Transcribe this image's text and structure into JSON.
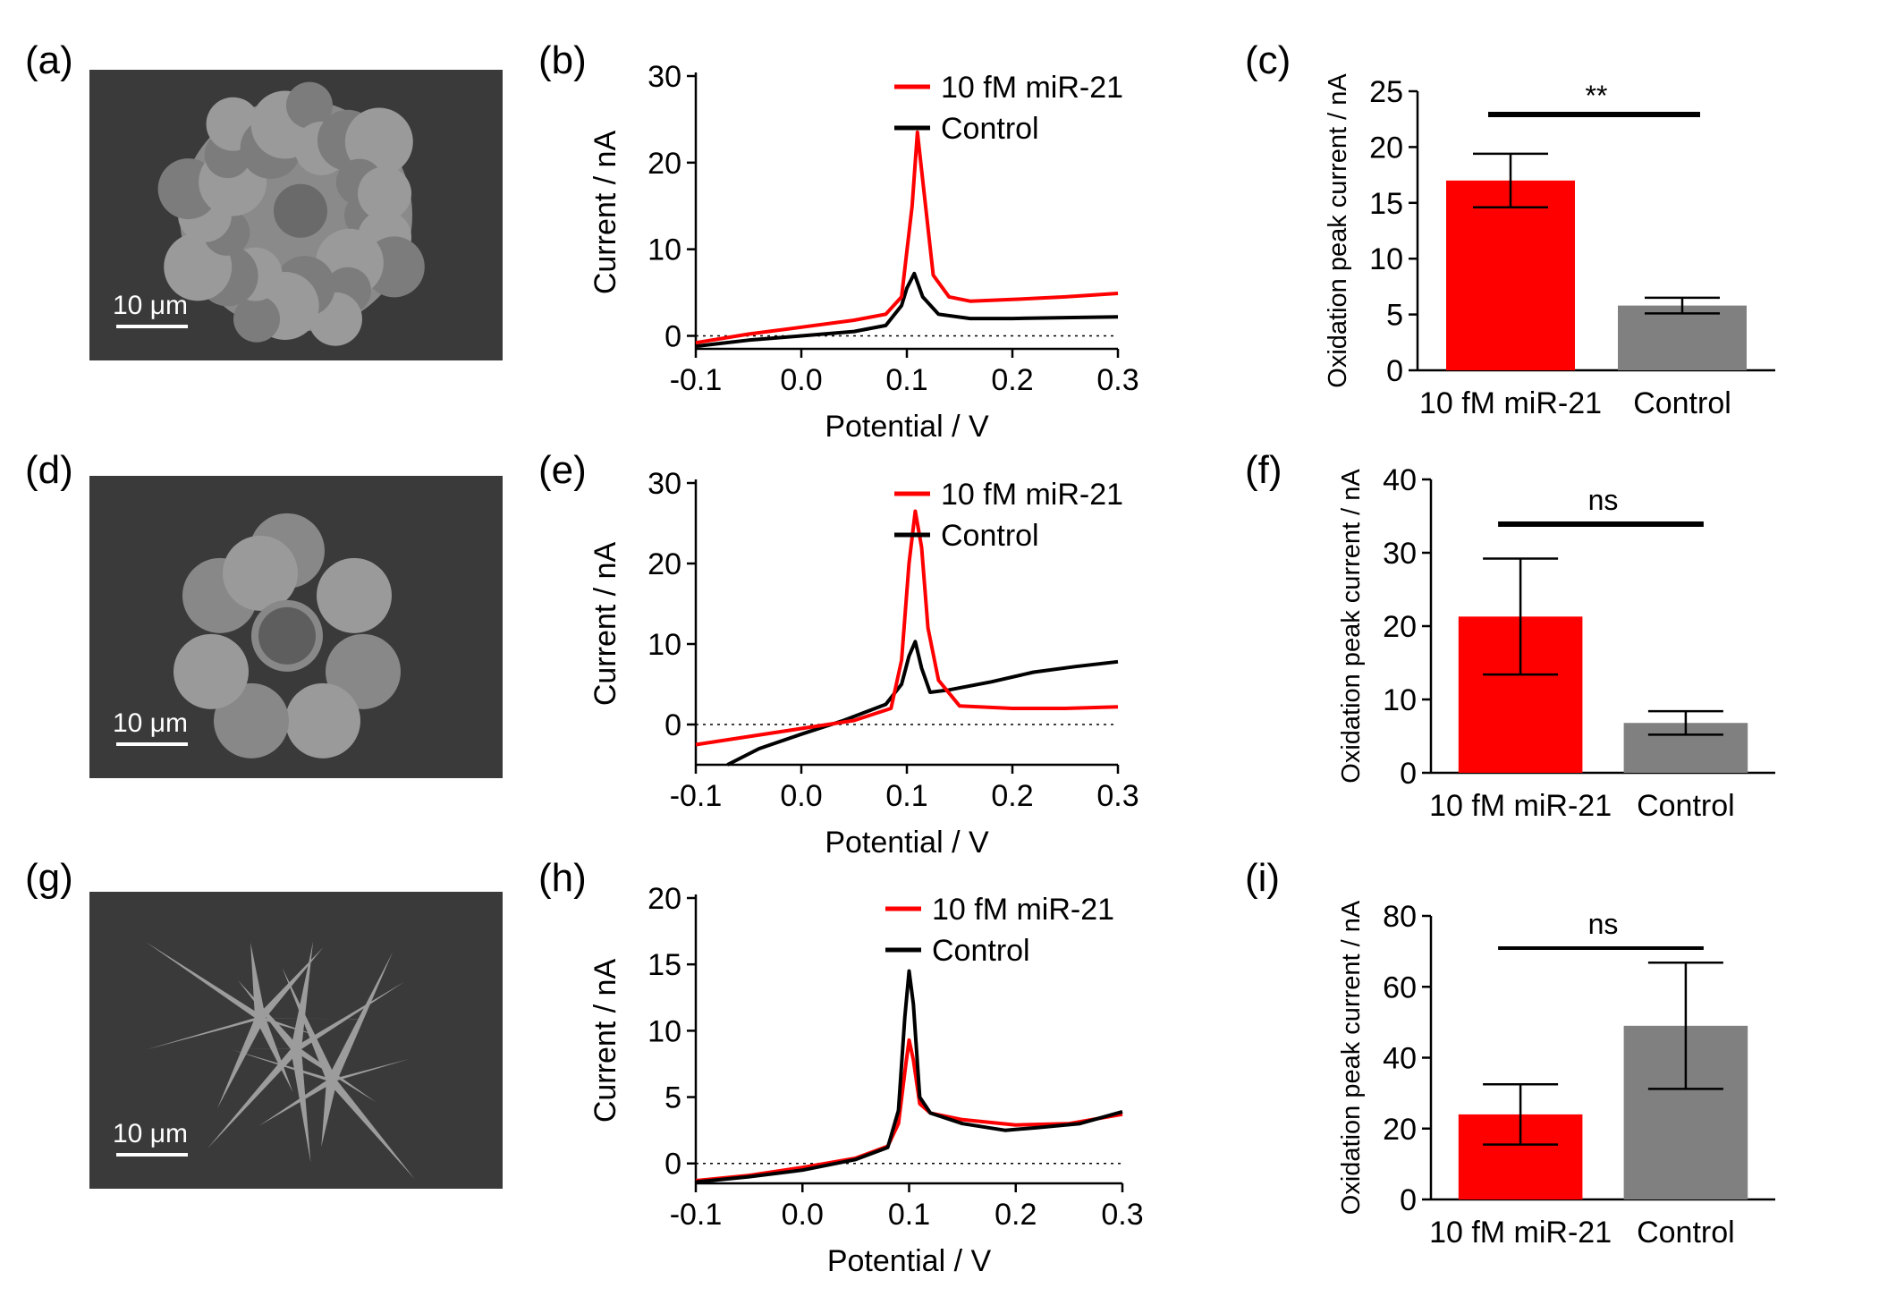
{
  "colors": {
    "red": "#ff0000",
    "black": "#000000",
    "gray": "#808080",
    "sem_bg": "#3a3a3a",
    "particle": "#8a8a8a"
  },
  "rows": [
    {
      "sem": {
        "label": "(a)",
        "scalebar": "10 μm",
        "morphology": "rounded cauliflower-like particle"
      },
      "cv": {
        "label": "(b)",
        "xlabel": "Potential / V",
        "ylabel": "Current / nA",
        "xlim": [
          -0.1,
          0.3
        ],
        "ylim": [
          -1.5,
          30
        ],
        "xticks": [
          -0.1,
          0.0,
          0.1,
          0.2,
          0.3
        ],
        "xtick_labels": [
          "-0.1",
          "0.0",
          "0.1",
          "0.2",
          "0.3"
        ],
        "yticks": [
          0,
          10,
          20,
          30
        ],
        "ytick_labels": [
          "0",
          "10",
          "20",
          "30"
        ],
        "legend": [
          "10 fM miR-21",
          "Control"
        ]
      },
      "bar": {
        "label": "(c)",
        "ylabel": "Oxidation peak current / nA",
        "ylim": [
          0,
          25
        ],
        "yticks": [
          0,
          5,
          10,
          15,
          20,
          25
        ],
        "ytick_labels": [
          "0",
          "5",
          "10",
          "15",
          "20",
          "25"
        ],
        "categories": [
          "10 fM miR-21",
          "Control"
        ],
        "significance": "**"
      }
    },
    {
      "sem": {
        "label": "(d)",
        "scalebar": "10 μm",
        "morphology": "flower-like clustered particles"
      },
      "cv": {
        "label": "(e)",
        "xlabel": "Potential / V",
        "ylabel": "Current / nA",
        "xlim": [
          -0.1,
          0.3
        ],
        "ylim": [
          -5,
          30
        ],
        "xticks": [
          -0.1,
          0.0,
          0.1,
          0.2,
          0.3
        ],
        "xtick_labels": [
          "-0.1",
          "0.0",
          "0.1",
          "0.2",
          "0.3"
        ],
        "yticks": [
          0,
          10,
          20,
          30
        ],
        "ytick_labels": [
          "0",
          "10",
          "20",
          "30"
        ],
        "legend": [
          "10 fM miR-21",
          "Control"
        ]
      },
      "bar": {
        "label": "(f)",
        "ylabel": "Oxidation peak current / nA",
        "ylim": [
          0,
          40
        ],
        "yticks": [
          0,
          10,
          20,
          30,
          40
        ],
        "ytick_labels": [
          "0",
          "10",
          "20",
          "30",
          "40"
        ],
        "categories": [
          "10 fM miR-21",
          "Control"
        ],
        "significance": "ns"
      }
    },
    {
      "sem": {
        "label": "(g)",
        "scalebar": "10 μm",
        "morphology": "spiky needle-like clusters"
      },
      "cv": {
        "label": "(h)",
        "xlabel": "Potential / V",
        "ylabel": "Current / nA",
        "xlim": [
          -0.1,
          0.3
        ],
        "ylim": [
          -1.5,
          20
        ],
        "xticks": [
          -0.1,
          0.0,
          0.1,
          0.2,
          0.3
        ],
        "xtick_labels": [
          "-0.1",
          "0.0",
          "0.1",
          "0.2",
          "0.3"
        ],
        "yticks": [
          0,
          5,
          10,
          15,
          20
        ],
        "ytick_labels": [
          "0",
          "5",
          "10",
          "15",
          "20"
        ],
        "legend": [
          "10 fM miR-21",
          "Control"
        ]
      },
      "bar": {
        "label": "(i)",
        "ylabel": "Oxidation peak current / nA",
        "ylim": [
          0,
          80
        ],
        "yticks": [
          0,
          20,
          40,
          60,
          80
        ],
        "ytick_labels": [
          "0",
          "20",
          "40",
          "60",
          "80"
        ],
        "categories": [
          "10 fM miR-21",
          "Control"
        ],
        "significance": "ns"
      }
    }
  ],
  "chart_data": [
    {
      "type": "line",
      "panel": "(b)",
      "title": "",
      "xlabel": "Potential / V",
      "ylabel": "Current / nA",
      "xlim": [
        -0.1,
        0.3
      ],
      "ylim": [
        -1.5,
        30
      ],
      "series": [
        {
          "name": "10 fM miR-21",
          "color": "#ff0000",
          "x": [
            -0.1,
            -0.05,
            0.0,
            0.05,
            0.08,
            0.095,
            0.105,
            0.11,
            0.115,
            0.125,
            0.14,
            0.16,
            0.2,
            0.25,
            0.3
          ],
          "y": [
            -0.8,
            0.2,
            1.0,
            1.8,
            2.5,
            4.5,
            15.0,
            23.5,
            18.0,
            7.0,
            4.5,
            4.0,
            4.2,
            4.5,
            4.9
          ]
        },
        {
          "name": "Control",
          "color": "#000000",
          "x": [
            -0.1,
            -0.05,
            0.0,
            0.05,
            0.08,
            0.095,
            0.1,
            0.107,
            0.115,
            0.13,
            0.16,
            0.2,
            0.25,
            0.3
          ],
          "y": [
            -1.2,
            -0.5,
            0.0,
            0.5,
            1.2,
            3.5,
            5.5,
            7.2,
            4.5,
            2.5,
            2.0,
            2.0,
            2.1,
            2.2
          ]
        }
      ],
      "reference_line_y": 0
    },
    {
      "type": "bar",
      "panel": "(c)",
      "title": "",
      "xlabel": "",
      "ylabel": "Oxidation peak current / nA",
      "categories": [
        "10 fM miR-21",
        "Control"
      ],
      "values": [
        17.0,
        5.8
      ],
      "errors": [
        2.4,
        0.7
      ],
      "colors": [
        "#ff0000",
        "#808080"
      ],
      "ylim": [
        0,
        25
      ],
      "significance": "**"
    },
    {
      "type": "line",
      "panel": "(e)",
      "title": "",
      "xlabel": "Potential / V",
      "ylabel": "Current / nA",
      "xlim": [
        -0.1,
        0.3
      ],
      "ylim": [
        -5,
        30
      ],
      "series": [
        {
          "name": "10 fM miR-21",
          "color": "#ff0000",
          "x": [
            -0.1,
            -0.05,
            0.0,
            0.05,
            0.085,
            0.095,
            0.102,
            0.108,
            0.114,
            0.12,
            0.13,
            0.15,
            0.2,
            0.25,
            0.3
          ],
          "y": [
            -2.5,
            -1.5,
            -0.5,
            0.5,
            2.0,
            8.0,
            20.0,
            26.5,
            22.0,
            12.0,
            5.5,
            2.3,
            2.0,
            2.0,
            2.2
          ]
        },
        {
          "name": "Control",
          "color": "#000000",
          "x": [
            -0.07,
            -0.04,
            0.0,
            0.04,
            0.08,
            0.095,
            0.102,
            0.108,
            0.114,
            0.122,
            0.14,
            0.18,
            0.22,
            0.26,
            0.3
          ],
          "y": [
            -5.0,
            -3.0,
            -1.2,
            0.5,
            2.5,
            5.0,
            8.5,
            10.3,
            7.0,
            4.0,
            4.3,
            5.3,
            6.5,
            7.2,
            7.8
          ]
        }
      ],
      "reference_line_y": 0
    },
    {
      "type": "bar",
      "panel": "(f)",
      "title": "",
      "xlabel": "",
      "ylabel": "Oxidation peak current / nA",
      "categories": [
        "10 fM miR-21",
        "Control"
      ],
      "values": [
        21.3,
        6.8
      ],
      "errors": [
        7.9,
        1.6
      ],
      "colors": [
        "#ff0000",
        "#808080"
      ],
      "ylim": [
        0,
        40
      ],
      "significance": "ns"
    },
    {
      "type": "line",
      "panel": "(h)",
      "title": "",
      "xlabel": "Potential / V",
      "ylabel": "Current / nA",
      "xlim": [
        -0.1,
        0.3
      ],
      "ylim": [
        -1.5,
        20
      ],
      "series": [
        {
          "name": "10 fM miR-21",
          "color": "#ff0000",
          "x": [
            -0.1,
            -0.05,
            0.0,
            0.05,
            0.08,
            0.09,
            0.097,
            0.1,
            0.104,
            0.11,
            0.12,
            0.15,
            0.2,
            0.25,
            0.3
          ],
          "y": [
            -1.3,
            -0.9,
            -0.3,
            0.4,
            1.3,
            3.0,
            7.5,
            9.3,
            7.8,
            4.5,
            3.8,
            3.3,
            2.9,
            3.0,
            3.7
          ]
        },
        {
          "name": "Control",
          "color": "#000000",
          "x": [
            -0.1,
            -0.05,
            0.0,
            0.05,
            0.08,
            0.09,
            0.096,
            0.1,
            0.104,
            0.11,
            0.12,
            0.15,
            0.19,
            0.22,
            0.26,
            0.3
          ],
          "y": [
            -1.4,
            -1.0,
            -0.5,
            0.3,
            1.2,
            4.0,
            11.0,
            14.5,
            12.0,
            5.0,
            3.8,
            3.0,
            2.5,
            2.7,
            3.0,
            3.9
          ]
        }
      ],
      "reference_line_y": 0
    },
    {
      "type": "bar",
      "panel": "(i)",
      "title": "",
      "xlabel": "",
      "ylabel": "Oxidation peak current / nA",
      "categories": [
        "10 fM miR-21",
        "Control"
      ],
      "values": [
        24.0,
        49.0
      ],
      "errors": [
        8.5,
        17.8
      ],
      "colors": [
        "#ff0000",
        "#808080"
      ],
      "ylim": [
        0,
        80
      ],
      "significance": "ns"
    }
  ]
}
